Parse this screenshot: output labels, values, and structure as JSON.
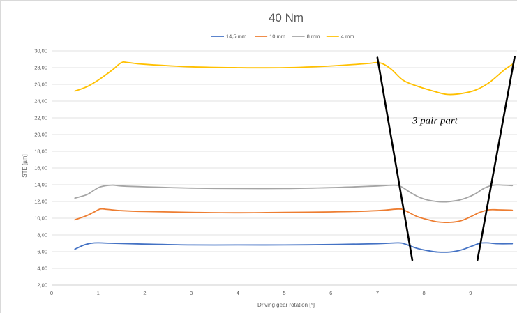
{
  "chart_data": {
    "type": "line",
    "title": "40 Nm",
    "xlabel": "Driving gear rotation [°]",
    "ylabel": "STE [µm]",
    "xlim": [
      0,
      10
    ],
    "ylim": [
      2,
      30
    ],
    "x_ticks": [
      "0",
      "1",
      "2",
      "3",
      "4",
      "5",
      "6",
      "7",
      "8",
      "9"
    ],
    "y_ticks": [
      "2,00",
      "4,00",
      "6,00",
      "8,00",
      "10,00",
      "12,00",
      "14,00",
      "16,00",
      "18,00",
      "20,00",
      "22,00",
      "24,00",
      "26,00",
      "28,00",
      "30,00"
    ],
    "grid": "horizontal",
    "legend_position": "top",
    "series": [
      {
        "name": "14,5 mm",
        "color": "#4472c4",
        "x": [
          0.5,
          0.7,
          0.85,
          1.0,
          1.3,
          2.0,
          3.0,
          4.0,
          5.0,
          6.0,
          7.0,
          7.45,
          7.6,
          7.85,
          8.1,
          8.3,
          8.55,
          8.8,
          9.05,
          9.2,
          9.35,
          9.6,
          9.9
        ],
        "y": [
          6.3,
          6.8,
          7.0,
          7.05,
          7.0,
          6.9,
          6.8,
          6.8,
          6.8,
          6.85,
          6.95,
          7.05,
          6.9,
          6.4,
          6.1,
          5.95,
          5.95,
          6.2,
          6.7,
          7.0,
          7.05,
          6.95,
          6.95
        ]
      },
      {
        "name": "10 mm",
        "color": "#ed7d31",
        "x": [
          0.5,
          0.75,
          0.9,
          1.05,
          1.2,
          1.5,
          2.0,
          3.0,
          4.0,
          5.0,
          6.0,
          7.0,
          7.45,
          7.6,
          7.85,
          8.1,
          8.3,
          8.55,
          8.8,
          9.05,
          9.2,
          9.4,
          9.6,
          9.9
        ],
        "y": [
          9.8,
          10.3,
          10.7,
          11.1,
          11.05,
          10.9,
          10.8,
          10.7,
          10.65,
          10.7,
          10.75,
          10.9,
          11.1,
          10.9,
          10.2,
          9.8,
          9.55,
          9.5,
          9.7,
          10.3,
          10.7,
          11.0,
          11.0,
          10.95
        ]
      },
      {
        "name": "8 mm",
        "color": "#a5a5a5",
        "x": [
          0.5,
          0.75,
          0.9,
          1.05,
          1.3,
          1.5,
          2.0,
          3.0,
          4.0,
          5.0,
          6.0,
          7.0,
          7.35,
          7.5,
          7.7,
          7.9,
          8.1,
          8.4,
          8.7,
          8.9,
          9.1,
          9.3,
          9.5,
          9.7,
          9.9
        ],
        "y": [
          12.4,
          12.8,
          13.3,
          13.75,
          13.95,
          13.85,
          13.75,
          13.6,
          13.55,
          13.55,
          13.65,
          13.85,
          13.95,
          13.8,
          13.1,
          12.5,
          12.15,
          11.95,
          12.1,
          12.4,
          12.9,
          13.6,
          13.95,
          13.95,
          13.9
        ]
      },
      {
        "name": "4 mm",
        "color": "#ffc000",
        "x": [
          0.5,
          0.75,
          1.0,
          1.3,
          1.5,
          1.65,
          2.0,
          3.0,
          4.0,
          5.0,
          6.0,
          6.8,
          6.95,
          7.1,
          7.3,
          7.55,
          7.85,
          8.2,
          8.5,
          8.8,
          9.1,
          9.4,
          9.7,
          9.9
        ],
        "y": [
          25.2,
          25.7,
          26.5,
          27.7,
          28.6,
          28.6,
          28.4,
          28.1,
          28.0,
          28.0,
          28.2,
          28.5,
          28.6,
          28.5,
          27.8,
          26.5,
          25.8,
          25.2,
          24.8,
          24.9,
          25.3,
          26.2,
          27.6,
          28.4
        ]
      }
    ],
    "annotations": [
      {
        "text": "3 pair part",
        "lines": [
          {
            "x": [
              7.0,
              7.75
            ],
            "y": [
              29.2,
              5.0
            ]
          },
          {
            "x": [
              9.15,
              9.95
            ],
            "y": [
              5.0,
              29.3
            ]
          }
        ],
        "text_x": 7.75,
        "text_y": 21.3
      }
    ]
  }
}
